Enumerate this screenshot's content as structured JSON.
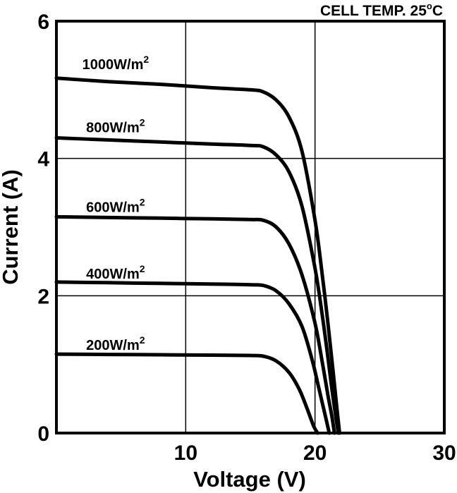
{
  "chart_data": {
    "type": "line",
    "title": "",
    "annotation": {
      "text": "CELL TEMP. 25",
      "sup": "o",
      "suffix": "C"
    },
    "xlabel": "Voltage (V)",
    "ylabel": "Current (A)",
    "xlim": [
      0,
      30
    ],
    "ylim": [
      0,
      6
    ],
    "xticks": [
      0,
      10,
      20,
      30
    ],
    "xtick_labels": [
      "",
      "10",
      "20",
      "30"
    ],
    "yticks": [
      0,
      2,
      4,
      6
    ],
    "ytick_labels": [
      "0",
      "2",
      "4",
      "6"
    ],
    "grid": true,
    "series": [
      {
        "name": "1000W/m",
        "sup": "2",
        "label_at": [
          2,
          5.3
        ],
        "x": [
          0,
          4,
          8,
          12,
          15,
          16,
          17,
          18,
          19,
          20,
          20.5,
          21,
          21.4,
          21.7,
          21.9
        ],
        "y": [
          5.17,
          5.12,
          5.08,
          5.03,
          5.0,
          4.97,
          4.85,
          4.6,
          4.1,
          3.1,
          2.4,
          1.6,
          0.9,
          0.35,
          0
        ]
      },
      {
        "name": "800W/m",
        "sup": "2",
        "label_at": [
          2.3,
          4.38
        ],
        "x": [
          0,
          4,
          8,
          12,
          15,
          16,
          17,
          18,
          19,
          20,
          20.5,
          21,
          21.3,
          21.6,
          21.8
        ],
        "y": [
          4.3,
          4.27,
          4.24,
          4.21,
          4.19,
          4.17,
          4.05,
          3.8,
          3.3,
          2.4,
          1.8,
          1.1,
          0.65,
          0.25,
          0
        ]
      },
      {
        "name": "600W/m",
        "sup": "2",
        "label_at": [
          2.3,
          3.22
        ],
        "x": [
          0,
          4,
          8,
          12,
          15,
          16,
          17,
          18,
          19,
          20,
          20.5,
          21,
          21.3,
          21.5
        ],
        "y": [
          3.15,
          3.14,
          3.13,
          3.12,
          3.11,
          3.1,
          3.0,
          2.75,
          2.3,
          1.6,
          1.1,
          0.55,
          0.25,
          0
        ]
      },
      {
        "name": "400W/m",
        "sup": "2",
        "label_at": [
          2.3,
          2.25
        ],
        "x": [
          0,
          4,
          8,
          12,
          15,
          16,
          17,
          18,
          19,
          19.8,
          20.3,
          20.8,
          21.1
        ],
        "y": [
          2.2,
          2.19,
          2.18,
          2.17,
          2.16,
          2.15,
          2.07,
          1.88,
          1.55,
          1.05,
          0.65,
          0.25,
          0
        ]
      },
      {
        "name": "200W/m",
        "sup": "2",
        "label_at": [
          2.3,
          1.21
        ],
        "x": [
          0,
          4,
          8,
          12,
          15,
          16,
          17,
          18,
          18.8,
          19.4,
          19.9,
          20.2
        ],
        "y": [
          1.15,
          1.145,
          1.14,
          1.135,
          1.13,
          1.12,
          1.05,
          0.88,
          0.63,
          0.35,
          0.1,
          0
        ]
      }
    ]
  }
}
